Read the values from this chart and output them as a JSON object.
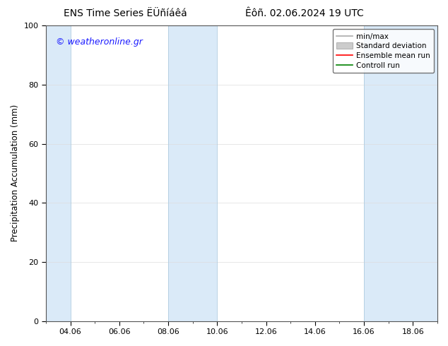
{
  "title_left": "ENS Time Series ËÜñíáêá",
  "title_right": "Êôñ. 02.06.2024 19 UTC",
  "ylabel": "Precipitation Accumulation (mm)",
  "watermark": "© weatheronline.gr",
  "watermark_color": "#1a1aff",
  "ylim": [
    0,
    100
  ],
  "ytick_labels": [
    "0",
    "20",
    "40",
    "60",
    "80",
    "100"
  ],
  "ytick_positions": [
    0,
    20,
    40,
    60,
    80,
    100
  ],
  "xtick_labels": [
    "04.06",
    "06.06",
    "08.06",
    "10.06",
    "12.06",
    "14.06",
    "16.06",
    "18.06"
  ],
  "shaded_regions": [
    {
      "xstart_day": 0,
      "xend_day": 1,
      "color": "#daeaf8"
    },
    {
      "xstart_day": 5,
      "xend_day": 7,
      "color": "#daeaf8"
    },
    {
      "xstart_day": 13,
      "xend_day": 16,
      "color": "#daeaf8"
    }
  ],
  "legend_entries": [
    {
      "label": "min/max",
      "color": "#aaaaaa",
      "lw": 1.2,
      "ls": "-",
      "type": "line"
    },
    {
      "label": "Standard deviation",
      "color": "#cccccc",
      "lw": 8,
      "ls": "-",
      "type": "band"
    },
    {
      "label": "Ensemble mean run",
      "color": "red",
      "lw": 1.2,
      "ls": "-",
      "type": "line"
    },
    {
      "label": "Controll run",
      "color": "green",
      "lw": 1.2,
      "ls": "-",
      "type": "line"
    }
  ],
  "bg_color": "#ffffff",
  "border_color": "#555555",
  "grid_color": "#dddddd",
  "title_fontsize": 10,
  "axis_fontsize": 8.5,
  "tick_fontsize": 8,
  "watermark_fontsize": 9,
  "xlim_day_start": 0,
  "xlim_day_end": 16
}
